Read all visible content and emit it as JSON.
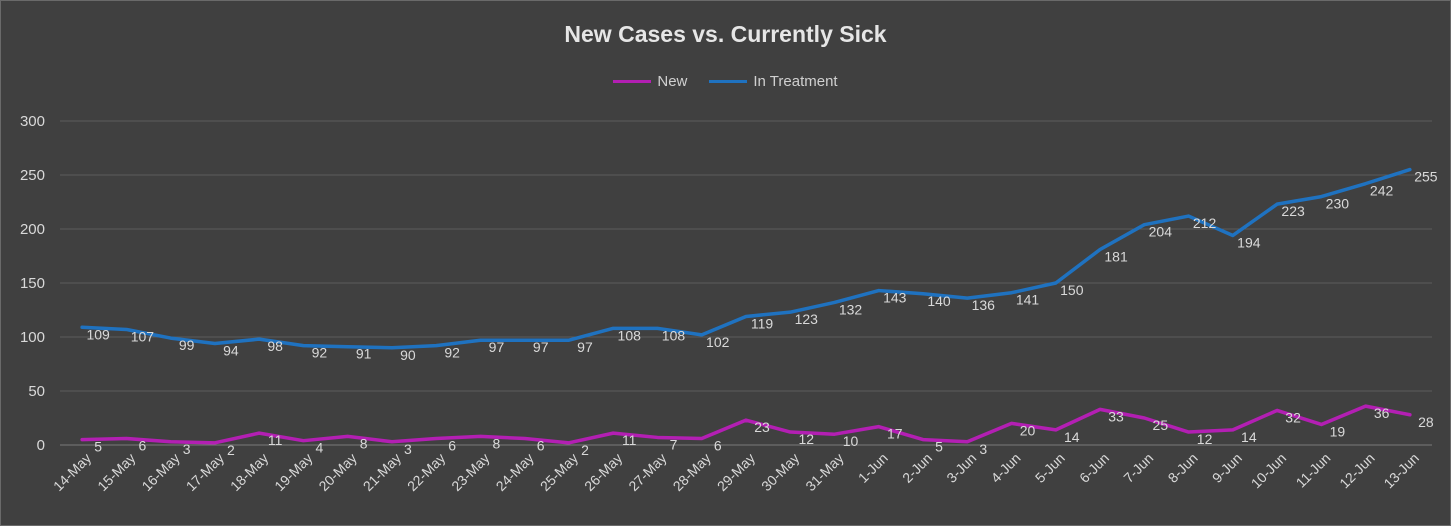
{
  "chart_data": {
    "type": "line",
    "title": "New Cases vs. Currently Sick",
    "xlabel": "",
    "ylabel": "",
    "ylim": [
      0,
      300
    ],
    "yticks": [
      0,
      50,
      100,
      150,
      200,
      250,
      300
    ],
    "grid": true,
    "legend": "top-center",
    "categories": [
      "14-May",
      "15-May",
      "16-May",
      "17-May",
      "18-May",
      "19-May",
      "20-May",
      "21-May",
      "22-May",
      "23-May",
      "24-May",
      "25-May",
      "26-May",
      "27-May",
      "28-May",
      "29-May",
      "30-May",
      "31-May",
      "1-Jun",
      "2-Jun",
      "3-Jun",
      "4-Jun",
      "5-Jun",
      "6-Jun",
      "7-Jun",
      "8-Jun",
      "9-Jun",
      "10-Jun",
      "11-Jun",
      "12-Jun",
      "13-Jun"
    ],
    "series": [
      {
        "name": "New",
        "color": "#b31fb3",
        "values": [
          5,
          6,
          3,
          2,
          11,
          4,
          8,
          3,
          6,
          8,
          6,
          2,
          11,
          7,
          6,
          23,
          12,
          10,
          17,
          5,
          3,
          20,
          14,
          33,
          25,
          12,
          14,
          32,
          19,
          36,
          28
        ]
      },
      {
        "name": "In Treatment",
        "color": "#1f72c0",
        "values": [
          109,
          107,
          99,
          94,
          98,
          92,
          91,
          90,
          92,
          97,
          97,
          97,
          108,
          108,
          102,
          119,
          123,
          132,
          143,
          140,
          136,
          141,
          150,
          181,
          204,
          212,
          194,
          223,
          230,
          242,
          255
        ]
      }
    ]
  }
}
